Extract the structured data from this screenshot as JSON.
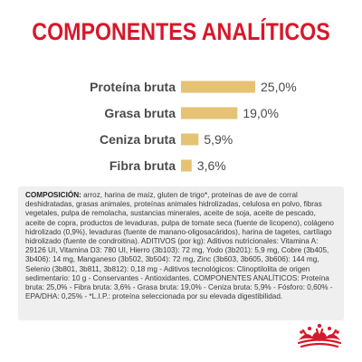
{
  "header": {
    "title": "COMPONENTES ANALÍTICOS"
  },
  "colors": {
    "title": "#d7182a",
    "bar": "#e6c273",
    "text": "#3a3a3a",
    "panel": "#efefef",
    "logo": "#d7182a"
  },
  "chart_data": {
    "type": "bar",
    "orientation": "horizontal",
    "categories": [
      "Proteína bruta",
      "Grasa bruta",
      "Ceniza bruta",
      "Fibra bruta"
    ],
    "values": [
      25.0,
      19.0,
      5.9,
      3.6
    ],
    "value_labels": [
      "25,0%",
      "19,0%",
      "5,9%",
      "3,6%"
    ],
    "unit": "%",
    "title": "",
    "grid": false,
    "legend": "none"
  },
  "composition": {
    "heading": "COMPOSICIÓN:",
    "text": " arroz, harina de maíz, gluten de trigo*, proteínas de ave de corral deshidratadas, grasas animales, proteínas animales hidrolizadas, celulosa en polvo, fibras vegetales, pulpa de remolacha, sustancias minerales, aceite de soja, aceite de pescado, aceite de copra, productos de levaduras, pulpa de tomate seca (fuente de licopeno), colágeno hidrolizado (0,9%), levaduras (fuente de manano-oligosacáridos), harina de tagetes, cartílago hidrolizado (fuente de condroitina). ADITIVOS (por kg): Aditivos nutricionales: Vitamina A: 29126 UI, Vitamina D3: 780 UI, Hierro (3b103): 72 mg, Yodo (3b201): 5,9 mg, Cobre (3b405, 3b406): 14 mg, Manganeso (3b502, 3b504): 72 mg, Zinc (3b603, 3b605, 3b606): 144 mg, Selenio (3b801, 3b811, 3b812): 0,18 mg - Aditivos tecnológicos: Clinoptilolita de origen sedimentario: 10 g - Conservantes - Antioxidantes. COMPONENTES ANALÍTICOS: Proteína bruta: 25,0% - Fibra bruta: 3,6% - Grasa bruta: 19,0% - Ceniza bruta: 5,9% - Fósforo: 0,60% - EPA/DHA: 0,25% - *L.I.P.: proteína seleccionada por su elevada digestibilidad."
  },
  "logo": {
    "name": "crown-logo-icon"
  }
}
